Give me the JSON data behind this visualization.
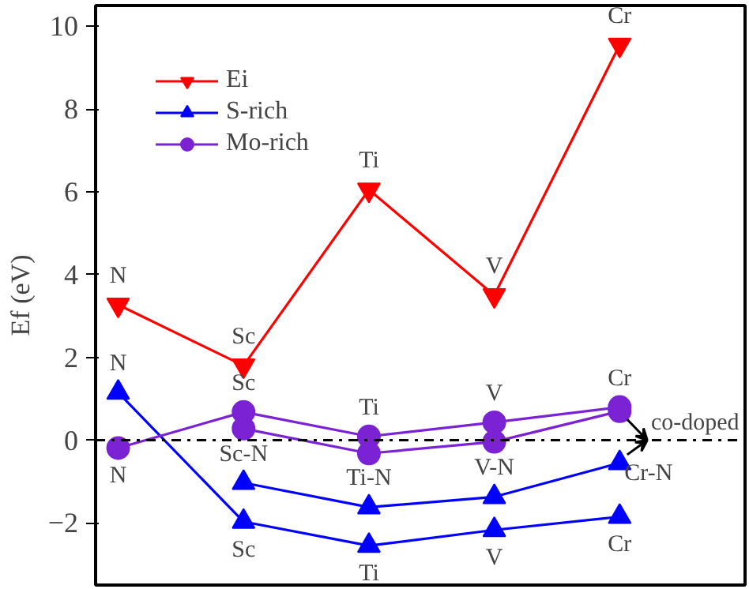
{
  "chart_data": {
    "type": "line",
    "categories": [
      null,
      null,
      null,
      null,
      null
    ],
    "ylabel": "Ef (eV)",
    "ylim": [
      -3.5,
      10.5
    ],
    "yticks": [
      -2,
      0,
      2,
      4,
      6,
      8,
      10
    ],
    "tick_labels": "y",
    "legend": "top left",
    "series": [
      {
        "name": "Ei",
        "color": "#ff0000",
        "marker": "triangle_down",
        "values": [
          3.27,
          1.8,
          6.05,
          3.5,
          9.55
        ]
      },
      {
        "name": "S-rich",
        "color": "#0000ff",
        "marker": "triangle",
        "values": [
          1.15,
          -1.97,
          -2.55,
          -2.17,
          -1.85
        ]
      },
      {
        "name": "Mo-rich",
        "color": "#7b22d4",
        "marker": "circle",
        "values": [
          -0.19,
          0.68,
          0.09,
          0.43,
          0.8
        ]
      },
      {
        "color": "#0000ff",
        "marker": "triangle",
        "values": [
          null,
          -1.03,
          -1.62,
          -1.37,
          -0.55
        ]
      },
      {
        "color": "#7b22d4",
        "marker": "circle",
        "values": [
          null,
          0.28,
          -0.32,
          -0.04,
          0.7
        ]
      }
    ],
    "ref_lines": [
      {
        "axis": "y",
        "value": 0,
        "line_style": "dashdot",
        "color": "#000000"
      }
    ],
    "annotations": [
      {
        "text": "N",
        "y": 3.27
      },
      {
        "text": "Sc",
        "y": 1.8
      },
      {
        "text": "Ti",
        "y": 6.05
      },
      {
        "text": "V",
        "y": 3.5
      },
      {
        "text": "Cr",
        "y": 9.55
      },
      {
        "text": "N",
        "y": 1.15
      },
      {
        "text": "Sc",
        "y": -1.97
      },
      {
        "text": "Ti",
        "y": -2.55
      },
      {
        "text": "V",
        "y": -2.17
      },
      {
        "text": "Cr",
        "y": -1.85
      },
      {
        "text": "N",
        "y": -0.19
      },
      {
        "text": "Sc",
        "y": 0.68
      },
      {
        "text": "Ti",
        "y": 0.09
      },
      {
        "text": "V",
        "y": 0.43
      },
      {
        "text": "Cr",
        "y": 0.8
      },
      {
        "text": "Sc-N",
        "y": -1.03
      },
      {
        "text": "Ti-N",
        "y": -1.62
      },
      {
        "text": "V-N",
        "y": -1.37
      },
      "co-doped",
      "Cr-N"
    ]
  }
}
